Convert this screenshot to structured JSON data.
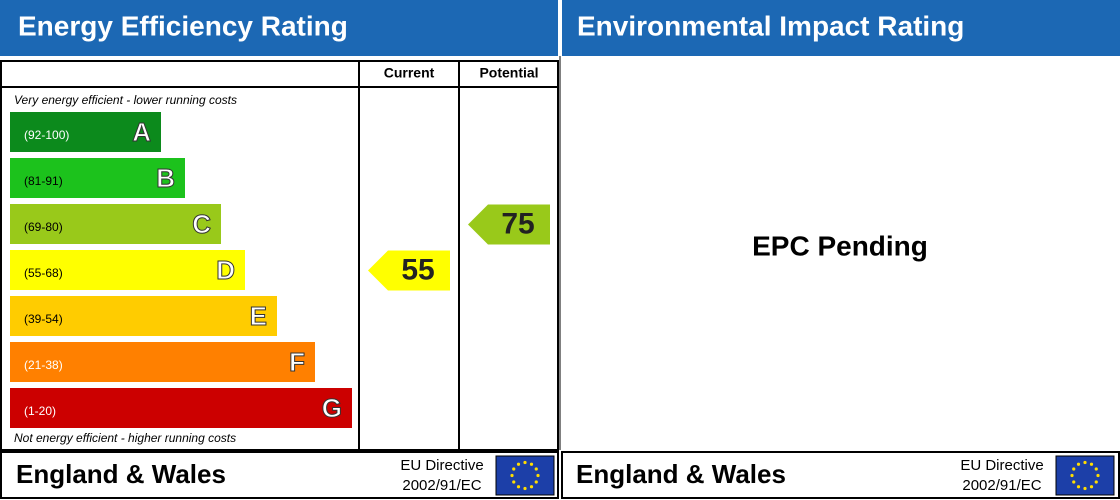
{
  "left": {
    "title": "Energy Efficiency Rating",
    "columns": [
      "Current",
      "Potential"
    ],
    "top_note": "Very energy efficient - lower running costs",
    "bottom_note": "Not energy efficient - higher running costs",
    "bands": [
      {
        "range": "(92-100)",
        "letter": "A",
        "color": "#0c8a1c"
      },
      {
        "range": "(81-91)",
        "letter": "B",
        "color": "#1cc21c"
      },
      {
        "range": "(69-80)",
        "letter": "C",
        "color": "#99c91a"
      },
      {
        "range": "(55-68)",
        "letter": "D",
        "color": "#ffff00"
      },
      {
        "range": "(39-54)",
        "letter": "E",
        "color": "#ffcc00"
      },
      {
        "range": "(21-38)",
        "letter": "F",
        "color": "#ff8000"
      },
      {
        "range": "(1-20)",
        "letter": "G",
        "color": "#cc0000"
      }
    ],
    "current": {
      "value": 55,
      "color": "#ffff00"
    },
    "potential": {
      "value": 75,
      "color": "#99c91a"
    }
  },
  "right": {
    "title": "Environmental Impact Rating",
    "status": "EPC Pending"
  },
  "footer": {
    "region": "England & Wales",
    "directive": "EU Directive",
    "code": "2002/91/EC"
  }
}
